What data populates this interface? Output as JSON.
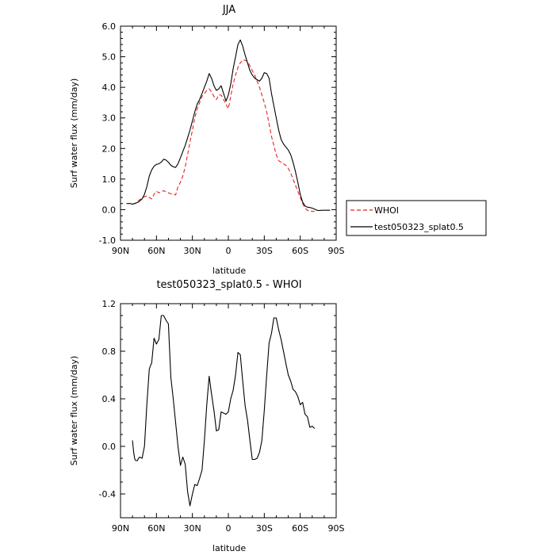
{
  "chart_data": [
    {
      "type": "line",
      "title": "JJA",
      "xlabel": "latitude",
      "ylabel": "Surf water flux (mm/day)",
      "xlim": [
        90,
        -90
      ],
      "ylim": [
        -1.0,
        6.0
      ],
      "xticks": [
        90,
        60,
        30,
        0,
        -30,
        -60,
        -90
      ],
      "xtick_labels": [
        "90N",
        "60N",
        "30N",
        "0",
        "30S",
        "60S",
        "90S"
      ],
      "yticks": [
        -1.0,
        0.0,
        1.0,
        2.0,
        3.0,
        4.0,
        5.0,
        6.0
      ],
      "ytick_labels": [
        "-1.0",
        "0.0",
        "1.0",
        "2.0",
        "3.0",
        "4.0",
        "5.0",
        "6.0"
      ],
      "legend_position": "right",
      "series": [
        {
          "name": "WHOI",
          "color": "#e8231f",
          "dash": "5,3",
          "x": [
            80,
            77,
            75,
            72,
            70,
            68,
            66,
            64,
            62,
            60,
            58,
            56,
            54,
            52,
            50,
            48,
            46,
            44,
            42,
            40,
            38,
            36,
            34,
            32,
            30,
            28,
            26,
            24,
            22,
            20,
            18,
            16,
            14,
            12,
            10,
            8,
            6,
            4,
            2,
            0,
            -2,
            -4,
            -6,
            -8,
            -10,
            -12,
            -14,
            -16,
            -18,
            -20,
            -22,
            -24,
            -26,
            -28,
            -30,
            -32,
            -34,
            -36,
            -38,
            -40,
            -42,
            -44,
            -46,
            -48,
            -50,
            -52,
            -54,
            -56,
            -58,
            -60,
            -62,
            -64,
            -66,
            -68,
            -70,
            -72
          ],
          "y": [
            0.18,
            0.22,
            0.3,
            0.38,
            0.42,
            0.45,
            0.4,
            0.35,
            0.5,
            0.6,
            0.55,
            0.58,
            0.62,
            0.58,
            0.55,
            0.52,
            0.5,
            0.48,
            0.75,
            0.9,
            1.1,
            1.4,
            1.8,
            2.2,
            2.6,
            3.0,
            3.3,
            3.5,
            3.7,
            3.8,
            3.9,
            3.95,
            3.85,
            3.7,
            3.6,
            3.75,
            3.75,
            3.6,
            3.45,
            3.3,
            3.7,
            4.1,
            4.4,
            4.65,
            4.8,
            4.9,
            4.88,
            4.85,
            4.7,
            4.55,
            4.4,
            4.2,
            4.0,
            3.75,
            3.5,
            3.2,
            2.8,
            2.4,
            2.1,
            1.8,
            1.6,
            1.55,
            1.5,
            1.45,
            1.35,
            1.2,
            1.0,
            0.8,
            0.6,
            0.4,
            0.2,
            0.05,
            -0.02,
            -0.05,
            -0.05,
            -0.06
          ]
        },
        {
          "name": "test050323_splat0.5",
          "color": "#000000",
          "dash": "",
          "x": [
            85,
            82,
            80,
            78,
            75,
            72,
            70,
            68,
            66,
            64,
            62,
            60,
            58,
            56,
            54,
            52,
            50,
            48,
            46,
            44,
            42,
            40,
            38,
            36,
            34,
            32,
            30,
            28,
            26,
            24,
            22,
            20,
            18,
            16,
            14,
            12,
            10,
            8,
            6,
            4,
            2,
            0,
            -2,
            -4,
            -6,
            -8,
            -10,
            -12,
            -14,
            -16,
            -18,
            -20,
            -22,
            -24,
            -26,
            -28,
            -30,
            -32,
            -34,
            -36,
            -38,
            -40,
            -42,
            -44,
            -46,
            -48,
            -50,
            -52,
            -54,
            -56,
            -58,
            -60,
            -62,
            -64,
            -66,
            -68,
            -70,
            -72,
            -74,
            -76,
            -78,
            -80,
            -85
          ],
          "y": [
            0.2,
            0.2,
            0.18,
            0.2,
            0.25,
            0.35,
            0.5,
            0.75,
            1.1,
            1.3,
            1.42,
            1.48,
            1.5,
            1.55,
            1.65,
            1.62,
            1.55,
            1.45,
            1.4,
            1.38,
            1.5,
            1.7,
            1.9,
            2.1,
            2.35,
            2.6,
            2.9,
            3.2,
            3.45,
            3.6,
            3.8,
            4.0,
            4.2,
            4.45,
            4.3,
            4.05,
            3.9,
            3.95,
            4.05,
            3.8,
            3.55,
            3.75,
            4.1,
            4.6,
            5.0,
            5.4,
            5.55,
            5.35,
            5.05,
            4.8,
            4.55,
            4.4,
            4.3,
            4.25,
            4.2,
            4.3,
            4.48,
            4.45,
            4.3,
            3.8,
            3.4,
            3.0,
            2.6,
            2.3,
            2.15,
            2.05,
            1.95,
            1.8,
            1.55,
            1.25,
            0.9,
            0.5,
            0.25,
            0.12,
            0.08,
            0.07,
            0.05,
            0.02,
            -0.02,
            -0.03,
            -0.02,
            -0.02,
            -0.02
          ]
        }
      ]
    },
    {
      "type": "line",
      "title": "test050323_splat0.5 - WHOI",
      "xlabel": "latitude",
      "ylabel": "Surf water flux (mm/day)",
      "xlim": [
        90,
        -90
      ],
      "ylim": [
        -0.6,
        1.2
      ],
      "xticks": [
        90,
        60,
        30,
        0,
        -30,
        -60,
        -90
      ],
      "xtick_labels": [
        "90N",
        "60N",
        "30N",
        "0",
        "30S",
        "60S",
        "90S"
      ],
      "yticks": [
        -0.4,
        0.0,
        0.4,
        0.8,
        1.2
      ],
      "ytick_labels": [
        "-0.4",
        "0.0",
        "0.4",
        "0.8",
        "1.2"
      ],
      "series": [
        {
          "color": "#000000",
          "dash": "",
          "x": [
            80,
            79,
            78,
            77,
            76,
            75,
            74,
            72,
            70,
            68,
            66,
            65,
            64,
            62,
            60,
            58,
            56,
            54,
            52,
            50,
            48,
            46,
            44,
            42,
            40,
            38,
            36,
            34,
            32,
            30,
            28,
            26,
            24,
            22,
            20,
            18,
            16,
            14,
            12,
            10,
            8,
            6,
            4,
            2,
            0,
            -2,
            -4,
            -6,
            -8,
            -10,
            -12,
            -14,
            -16,
            -18,
            -20,
            -22,
            -24,
            -26,
            -28,
            -30,
            -32,
            -34,
            -36,
            -38,
            -40,
            -42,
            -44,
            -46,
            -48,
            -50,
            -52,
            -54,
            -56,
            -58,
            -60,
            -62,
            -64,
            -66,
            -68,
            -70,
            -72
          ],
          "y": [
            0.05,
            -0.05,
            -0.11,
            -0.12,
            -0.12,
            -0.1,
            -0.09,
            -0.1,
            0.0,
            0.35,
            0.65,
            0.68,
            0.7,
            0.91,
            0.86,
            0.9,
            1.1,
            1.1,
            1.06,
            1.03,
            0.58,
            0.4,
            0.2,
            0.0,
            -0.16,
            -0.09,
            -0.15,
            -0.38,
            -0.5,
            -0.4,
            -0.32,
            -0.33,
            -0.27,
            -0.2,
            0.05,
            0.35,
            0.59,
            0.44,
            0.3,
            0.13,
            0.14,
            0.29,
            0.28,
            0.27,
            0.29,
            0.4,
            0.47,
            0.6,
            0.79,
            0.77,
            0.55,
            0.34,
            0.22,
            0.05,
            -0.11,
            -0.11,
            -0.1,
            -0.05,
            0.05,
            0.3,
            0.6,
            0.87,
            0.95,
            1.08,
            1.08,
            0.98,
            0.9,
            0.8,
            0.7,
            0.6,
            0.55,
            0.48,
            0.46,
            0.42,
            0.35,
            0.37,
            0.27,
            0.25,
            0.16,
            0.17,
            0.15
          ]
        }
      ]
    }
  ]
}
